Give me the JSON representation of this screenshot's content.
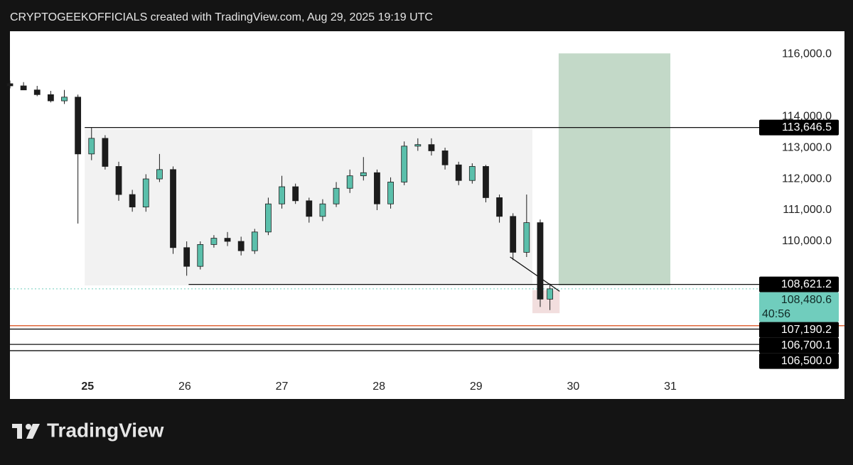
{
  "header": "CRYPTOGEEKOFFICIALS created with TradingView.com, Aug 29, 2025 19:19 UTC",
  "chart_data": {
    "type": "candlestick",
    "xlim": [
      24.2,
      31.9
    ],
    "xticks": [
      25,
      26,
      27,
      28,
      29,
      30,
      31
    ],
    "ylim": [
      105680,
      116730
    ],
    "yticks": [
      {
        "value": 116000,
        "label": "116,000.0"
      },
      {
        "value": 114000,
        "label": "114,000.0"
      },
      {
        "value": 113000,
        "label": "113,000.0"
      },
      {
        "value": 112000,
        "label": "112,000.0"
      },
      {
        "value": 111000,
        "label": "111,000.0"
      },
      {
        "value": 110000,
        "label": "110,000.0"
      }
    ],
    "up_color": "#5bbfab",
    "down_color": "#1c1c1c",
    "x": [
      24.2,
      24.34,
      24.48,
      24.62,
      24.76,
      24.9,
      25.04,
      25.18,
      25.32,
      25.46,
      25.6,
      25.74,
      25.88,
      26.02,
      26.16,
      26.3,
      26.44,
      26.58,
      26.72,
      26.86,
      27.0,
      27.14,
      27.28,
      27.42,
      27.56,
      27.7,
      27.84,
      27.98,
      28.12,
      28.26,
      28.4,
      28.54,
      28.68,
      28.82,
      28.96,
      29.1,
      29.24,
      29.38,
      29.52,
      29.66,
      29.76
    ],
    "open": [
      115050,
      114980,
      114850,
      114700,
      114500,
      114620,
      112800,
      113300,
      112400,
      111500,
      111100,
      112000,
      112300,
      109800,
      109200,
      109900,
      110100,
      110000,
      109700,
      110300,
      111200,
      111750,
      111300,
      110800,
      111200,
      111700,
      112100,
      112200,
      111200,
      111900,
      113050,
      113100,
      112900,
      112450,
      111950,
      112400,
      111400,
      110800,
      109650,
      110600,
      108150
    ],
    "high": [
      115150,
      115100,
      114980,
      114820,
      114850,
      114700,
      113650,
      113400,
      112550,
      111650,
      112150,
      112800,
      112400,
      110000,
      110000,
      110200,
      110300,
      110150,
      110400,
      111400,
      112100,
      111850,
      111400,
      111350,
      111900,
      112300,
      112700,
      112300,
      112050,
      113200,
      113300,
      113300,
      113000,
      112550,
      112500,
      112450,
      111500,
      110900,
      111500,
      110700,
      108650
    ],
    "low": [
      114900,
      114850,
      114650,
      114450,
      114400,
      110570,
      112600,
      112300,
      111300,
      110950,
      110950,
      111900,
      109600,
      108900,
      109100,
      109800,
      109850,
      109550,
      109600,
      110200,
      111050,
      111200,
      110600,
      110650,
      111100,
      111550,
      111950,
      111000,
      111050,
      111800,
      112900,
      112750,
      112300,
      111800,
      111850,
      111250,
      110600,
      109400,
      109500,
      107900,
      107800
    ],
    "close": [
      114980,
      114850,
      114700,
      114500,
      114620,
      112800,
      113300,
      112400,
      111500,
      111100,
      112000,
      112300,
      109800,
      109200,
      109900,
      110100,
      110000,
      109700,
      110300,
      111200,
      111750,
      111300,
      110800,
      111200,
      111700,
      112100,
      112200,
      111200,
      111900,
      113050,
      113100,
      112900,
      112450,
      111950,
      112400,
      111400,
      110800,
      109650,
      110600,
      108150,
      108480.6
    ],
    "range_box": {
      "x": [
        24.97,
        29.58
      ],
      "y": [
        113590,
        108590
      ],
      "color": "#f2f2f2"
    },
    "target_box": {
      "x": [
        29.85,
        31.0
      ],
      "y": [
        116020,
        108590
      ],
      "color": "#c3d9c8"
    },
    "stop_box": {
      "x": [
        29.58,
        29.86
      ],
      "y": [
        108440,
        107700
      ],
      "color": "#f2dede"
    },
    "trend_line": {
      "x": [
        29.35,
        29.86
      ],
      "y": [
        109500,
        108400
      ]
    },
    "orange_line": {
      "value": 107300,
      "color": "#e0663a"
    },
    "levels": [
      {
        "value": 113646.5,
        "label": "113,646.5",
        "x_start": 24.97
      },
      {
        "value": 108621.2,
        "label": "108,621.2",
        "x_start": 26.04
      },
      {
        "value": 107190.2,
        "label": "107,190.2"
      },
      {
        "value": 106700.1,
        "label": "106,700.1"
      },
      {
        "value": 106500.0,
        "label": "106,500.0"
      }
    ],
    "current": {
      "value": 108480.6,
      "label": "108,480.6",
      "countdown": "40:56",
      "color": "#70cdbd"
    }
  },
  "footer": {
    "brand": "TradingView"
  }
}
